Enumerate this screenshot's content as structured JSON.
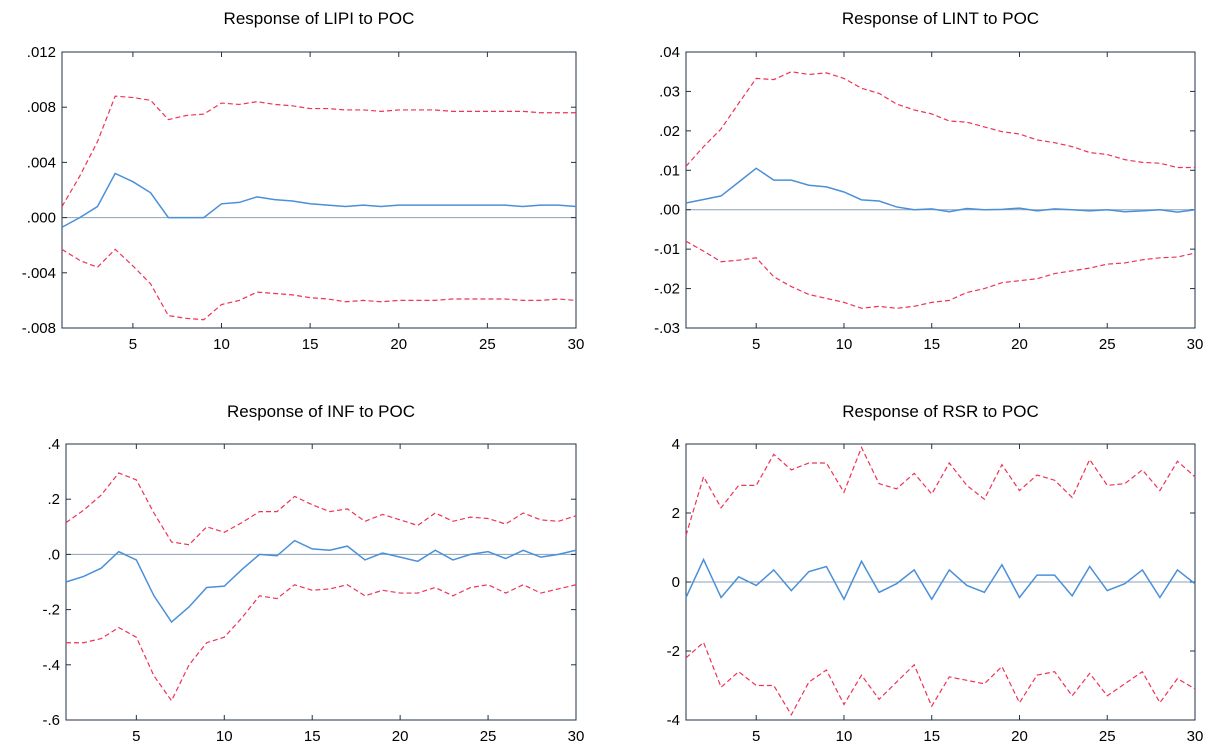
{
  "colors": {
    "response": "#4a90d9",
    "bands": "#ee3355",
    "frame": "#22304a",
    "zero": "#8da2b8"
  },
  "chart_data": [
    {
      "type": "line",
      "title": "Response of LIPI to POC",
      "xlabel": "",
      "ylabel": "",
      "xlim": [
        1,
        30
      ],
      "ylim": [
        -0.008,
        0.012
      ],
      "xticks": [
        5,
        10,
        15,
        20,
        25,
        30
      ],
      "xtick_labels": [
        "5",
        "10",
        "15",
        "20",
        "25",
        "30"
      ],
      "yticks": [
        -0.008,
        -0.004,
        0.0,
        0.004,
        0.008,
        0.012
      ],
      "ytick_labels": [
        "-.008",
        "-.004",
        ".000",
        ".004",
        ".008",
        ".012"
      ],
      "grid": false,
      "x": [
        1,
        2,
        3,
        4,
        5,
        6,
        7,
        8,
        9,
        10,
        11,
        12,
        13,
        14,
        15,
        16,
        17,
        18,
        19,
        20,
        21,
        22,
        23,
        24,
        25,
        26,
        27,
        28,
        29,
        30
      ],
      "series": [
        {
          "role": "response",
          "style": "solid",
          "values": [
            -0.0007,
            0.0,
            0.0008,
            0.0032,
            0.0026,
            0.0018,
            0.0,
            0.0,
            0.0,
            0.001,
            0.0011,
            0.0015,
            0.0013,
            0.0012,
            0.001,
            0.0009,
            0.0008,
            0.0009,
            0.0008,
            0.0009,
            0.0009,
            0.0009,
            0.0009,
            0.0009,
            0.0009,
            0.0009,
            0.0008,
            0.0009,
            0.0009,
            0.0008
          ]
        },
        {
          "role": "upper",
          "style": "dashed",
          "values": [
            0.0008,
            0.003,
            0.0055,
            0.0088,
            0.0087,
            0.0085,
            0.0071,
            0.0074,
            0.0075,
            0.0083,
            0.0082,
            0.0084,
            0.0082,
            0.0081,
            0.0079,
            0.0079,
            0.0078,
            0.0078,
            0.0077,
            0.0078,
            0.0078,
            0.0078,
            0.0077,
            0.0077,
            0.0077,
            0.0077,
            0.0077,
            0.0076,
            0.0076,
            0.0076
          ]
        },
        {
          "role": "lower",
          "style": "dashed",
          "values": [
            -0.0023,
            -0.0031,
            -0.0036,
            -0.0023,
            -0.0035,
            -0.0048,
            -0.0071,
            -0.0073,
            -0.0074,
            -0.0063,
            -0.006,
            -0.0054,
            -0.0055,
            -0.0056,
            -0.0058,
            -0.0059,
            -0.0061,
            -0.006,
            -0.0061,
            -0.006,
            -0.006,
            -0.006,
            -0.0059,
            -0.0059,
            -0.0059,
            -0.0059,
            -0.006,
            -0.006,
            -0.0059,
            -0.006
          ]
        }
      ]
    },
    {
      "type": "line",
      "title": "Response of LINT to POC",
      "xlabel": "",
      "ylabel": "",
      "xlim": [
        1,
        30
      ],
      "ylim": [
        -0.03,
        0.04
      ],
      "xticks": [
        5,
        10,
        15,
        20,
        25,
        30
      ],
      "xtick_labels": [
        "5",
        "10",
        "15",
        "20",
        "25",
        "30"
      ],
      "yticks": [
        -0.03,
        -0.02,
        -0.01,
        0.0,
        0.01,
        0.02,
        0.03,
        0.04
      ],
      "ytick_labels": [
        "-.03",
        "-.02",
        "-.01",
        ".00",
        ".01",
        ".02",
        ".03",
        ".04"
      ],
      "grid": false,
      "x": [
        1,
        2,
        3,
        4,
        5,
        6,
        7,
        8,
        9,
        10,
        11,
        12,
        13,
        14,
        15,
        16,
        17,
        18,
        19,
        20,
        21,
        22,
        23,
        24,
        25,
        26,
        27,
        28,
        29,
        30
      ],
      "series": [
        {
          "role": "response",
          "style": "solid",
          "values": [
            0.0017,
            0.0026,
            0.0035,
            0.007,
            0.0105,
            0.0075,
            0.0075,
            0.0062,
            0.0058,
            0.0045,
            0.0025,
            0.0022,
            0.0007,
            0.0,
            0.0002,
            -0.0005,
            0.0003,
            0.0,
            0.0001,
            0.0004,
            -0.0003,
            0.0002,
            0.0,
            -0.0003,
            0.0,
            -0.0005,
            -0.0003,
            0.0,
            -0.0006,
            0.0
          ]
        },
        {
          "role": "upper",
          "style": "dashed",
          "values": [
            0.011,
            0.016,
            0.0205,
            0.027,
            0.0333,
            0.033,
            0.035,
            0.0343,
            0.0347,
            0.0333,
            0.0308,
            0.0295,
            0.0268,
            0.0253,
            0.0243,
            0.0225,
            0.0222,
            0.021,
            0.0198,
            0.0192,
            0.0177,
            0.017,
            0.016,
            0.0145,
            0.014,
            0.0127,
            0.012,
            0.0118,
            0.0107,
            0.0107
          ]
        },
        {
          "role": "lower",
          "style": "dashed",
          "values": [
            -0.008,
            -0.0105,
            -0.0132,
            -0.0128,
            -0.0122,
            -0.017,
            -0.0195,
            -0.0215,
            -0.0225,
            -0.0235,
            -0.025,
            -0.0245,
            -0.025,
            -0.0245,
            -0.0235,
            -0.023,
            -0.021,
            -0.02,
            -0.0185,
            -0.018,
            -0.0175,
            -0.0162,
            -0.0155,
            -0.0148,
            -0.0138,
            -0.0135,
            -0.0127,
            -0.0122,
            -0.012,
            -0.011
          ]
        }
      ]
    },
    {
      "type": "line",
      "title": "Response of INF to POC",
      "xlabel": "",
      "ylabel": "",
      "xlim": [
        1,
        30
      ],
      "ylim": [
        -0.6,
        0.4
      ],
      "xticks": [
        5,
        10,
        15,
        20,
        25,
        30
      ],
      "xtick_labels": [
        "5",
        "10",
        "15",
        "20",
        "25",
        "30"
      ],
      "yticks": [
        -0.6,
        -0.4,
        -0.2,
        0.0,
        0.2,
        0.4
      ],
      "ytick_labels": [
        "-.6",
        "-.4",
        "-.2",
        ".0",
        ".2",
        ".4"
      ],
      "grid": false,
      "x": [
        1,
        2,
        3,
        4,
        5,
        6,
        7,
        8,
        9,
        10,
        11,
        12,
        13,
        14,
        15,
        16,
        17,
        18,
        19,
        20,
        21,
        22,
        23,
        24,
        25,
        26,
        27,
        28,
        29,
        30
      ],
      "series": [
        {
          "role": "response",
          "style": "solid",
          "values": [
            -0.1,
            -0.08,
            -0.05,
            0.01,
            -0.02,
            -0.15,
            -0.245,
            -0.19,
            -0.12,
            -0.115,
            -0.055,
            0.0,
            -0.005,
            0.05,
            0.02,
            0.015,
            0.03,
            -0.02,
            0.005,
            -0.01,
            -0.025,
            0.015,
            -0.02,
            0.0,
            0.01,
            -0.015,
            0.015,
            -0.01,
            0.0,
            0.015
          ]
        },
        {
          "role": "upper",
          "style": "dashed",
          "values": [
            0.115,
            0.16,
            0.215,
            0.295,
            0.27,
            0.15,
            0.045,
            0.035,
            0.1,
            0.08,
            0.115,
            0.155,
            0.155,
            0.21,
            0.18,
            0.155,
            0.165,
            0.12,
            0.145,
            0.125,
            0.105,
            0.15,
            0.12,
            0.135,
            0.13,
            0.11,
            0.15,
            0.125,
            0.12,
            0.14
          ]
        },
        {
          "role": "lower",
          "style": "dashed",
          "values": [
            -0.32,
            -0.32,
            -0.305,
            -0.265,
            -0.3,
            -0.44,
            -0.53,
            -0.4,
            -0.32,
            -0.3,
            -0.23,
            -0.15,
            -0.16,
            -0.11,
            -0.13,
            -0.125,
            -0.11,
            -0.15,
            -0.13,
            -0.14,
            -0.14,
            -0.12,
            -0.15,
            -0.12,
            -0.11,
            -0.14,
            -0.11,
            -0.14,
            -0.125,
            -0.11
          ]
        }
      ]
    },
    {
      "type": "line",
      "title": "Response of RSR to POC",
      "xlabel": "",
      "ylabel": "",
      "xlim": [
        1,
        30
      ],
      "ylim": [
        -4,
        4
      ],
      "xticks": [
        5,
        10,
        15,
        20,
        25,
        30
      ],
      "xtick_labels": [
        "5",
        "10",
        "15",
        "20",
        "25",
        "30"
      ],
      "yticks": [
        -4,
        -2,
        0,
        2,
        4
      ],
      "ytick_labels": [
        "-4",
        "-2",
        "0",
        "2",
        "4"
      ],
      "grid": false,
      "x": [
        1,
        2,
        3,
        4,
        5,
        6,
        7,
        8,
        9,
        10,
        11,
        12,
        13,
        14,
        15,
        16,
        17,
        18,
        19,
        20,
        21,
        22,
        23,
        24,
        25,
        26,
        27,
        28,
        29,
        30
      ],
      "series": [
        {
          "role": "response",
          "style": "solid",
          "values": [
            -0.45,
            0.65,
            -0.45,
            0.15,
            -0.1,
            0.35,
            -0.25,
            0.3,
            0.45,
            -0.5,
            0.6,
            -0.3,
            -0.05,
            0.35,
            -0.5,
            0.35,
            -0.1,
            -0.3,
            0.5,
            -0.45,
            0.2,
            0.2,
            -0.4,
            0.45,
            -0.25,
            -0.05,
            0.35,
            -0.45,
            0.35,
            -0.05
          ]
        },
        {
          "role": "upper",
          "style": "dashed",
          "values": [
            1.35,
            3.05,
            2.15,
            2.8,
            2.8,
            3.7,
            3.25,
            3.45,
            3.45,
            2.6,
            3.9,
            2.85,
            2.7,
            3.15,
            2.55,
            3.45,
            2.8,
            2.4,
            3.4,
            2.65,
            3.1,
            2.95,
            2.45,
            3.55,
            2.8,
            2.85,
            3.25,
            2.65,
            3.5,
            3.05
          ]
        },
        {
          "role": "lower",
          "style": "dashed",
          "values": [
            -2.2,
            -1.75,
            -3.05,
            -2.6,
            -3.0,
            -3.0,
            -3.85,
            -2.9,
            -2.55,
            -3.55,
            -2.7,
            -3.4,
            -2.9,
            -2.4,
            -3.6,
            -2.75,
            -2.85,
            -2.95,
            -2.45,
            -3.5,
            -2.7,
            -2.6,
            -3.3,
            -2.65,
            -3.3,
            -2.95,
            -2.6,
            -3.5,
            -2.8,
            -3.1
          ]
        }
      ]
    }
  ]
}
